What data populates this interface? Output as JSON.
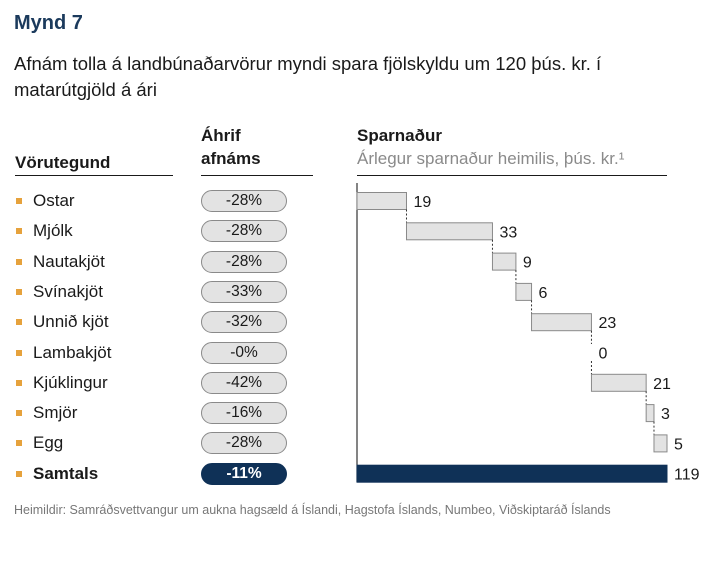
{
  "figure_label": "Mynd 7",
  "title": "Afnám tolla á landbúnaðarvörur myndi spara fjölskyldu um 120 þús. kr. í matarútgjöld á ári",
  "columns": {
    "product": "Vörutegund",
    "effect_line1": "Áhrif",
    "effect_line2": "afnáms",
    "savings": "Sparnaður",
    "savings_sub": "Árlegur sparnaður heimilis, þús. kr.¹"
  },
  "source": "Heimildir: Samráðsvettvangur um aukna hagsæld á Íslandi, Hagstofa Íslands, Numbeo, Viðskiptaráð Íslands",
  "colors": {
    "heading": "#1b3a5c",
    "bullet": "#e6a23c",
    "bar": "#e3e3e3",
    "total_bar": "#0f3157"
  },
  "rows": [
    {
      "label": "Ostar",
      "effect": "-28%"
    },
    {
      "label": "Mjólk",
      "effect": "-28%"
    },
    {
      "label": "Nautakjöt",
      "effect": "-28%"
    },
    {
      "label": "Svínakjöt",
      "effect": "-33%"
    },
    {
      "label": "Unnið kjöt",
      "effect": "-32%"
    },
    {
      "label": "Lambakjöt",
      "effect": "-0%"
    },
    {
      "label": "Kjúklingur",
      "effect": "-42%"
    },
    {
      "label": "Smjör",
      "effect": "-16%"
    },
    {
      "label": "Egg",
      "effect": "-28%"
    },
    {
      "label": "Samtals",
      "effect": "-11%",
      "total": true
    }
  ],
  "chart_data": {
    "type": "bar",
    "subtype": "waterfall",
    "title": "Sparnaður",
    "subtitle": "Árlegur sparnaður heimilis, þús. kr.¹",
    "categories": [
      "Ostar",
      "Mjólk",
      "Nautakjöt",
      "Svínakjöt",
      "Unnið kjöt",
      "Lambakjöt",
      "Kjúklingur",
      "Smjör",
      "Egg",
      "Samtals"
    ],
    "values": [
      19,
      33,
      9,
      6,
      23,
      0,
      21,
      3,
      5,
      119
    ],
    "data_labels": [
      "19",
      "33",
      "9",
      "6",
      "23",
      "0",
      "21",
      "3",
      "5",
      "119"
    ],
    "total_index": 9,
    "xlim": [
      0,
      119
    ],
    "grid": false
  }
}
